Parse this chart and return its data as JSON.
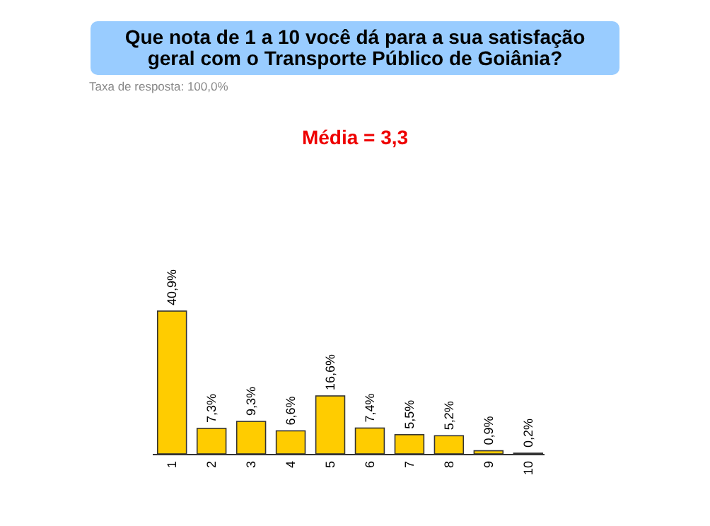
{
  "chart_data": {
    "type": "bar",
    "title": "Que nota de 1 a 10 você dá para a sua satisfação geral com o Transporte Público de Goiânia?",
    "subtitle": "Taxa de resposta: 100,0%",
    "annotations": [
      "Média = 3,3"
    ],
    "categories": [
      "1",
      "2",
      "3",
      "4",
      "5",
      "6",
      "7",
      "8",
      "9",
      "10"
    ],
    "values": [
      40.9,
      7.3,
      9.3,
      6.6,
      16.6,
      7.4,
      5.5,
      5.2,
      0.9,
      0.2
    ],
    "value_labels": [
      "40,9%",
      "7,3%",
      "9,3%",
      "6,6%",
      "16,6%",
      "7,4%",
      "5,5%",
      "5,2%",
      "0,9%",
      "0,2%"
    ],
    "color": "#ffcc00",
    "grid": false
  }
}
